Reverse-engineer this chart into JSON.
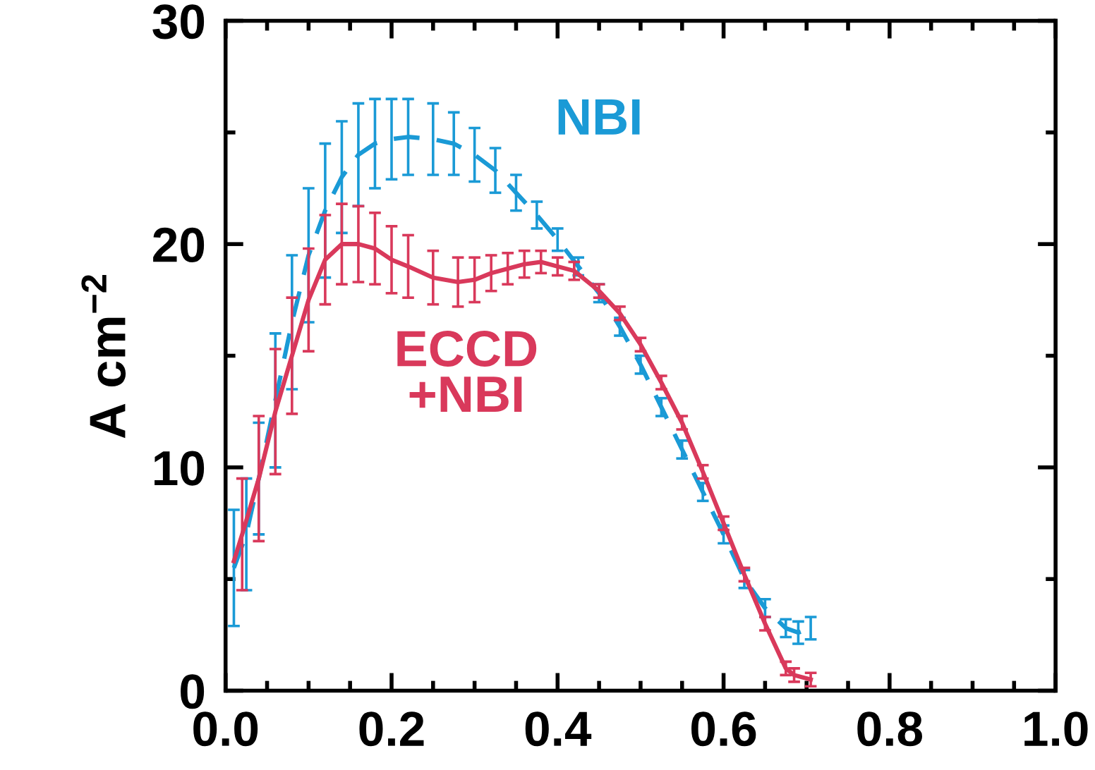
{
  "chart_data": {
    "type": "line",
    "ylabel": "A cm$^{−2}$",
    "xlim": [
      0.0,
      1.0
    ],
    "xticks": [
      {
        "value": 0.0,
        "label": "0.0"
      },
      0.2,
      0.4,
      0.6,
      0.8,
      {
        "value": 1.0,
        "label": "1.0"
      }
    ],
    "ylim": [
      0,
      30
    ],
    "yticks": [
      0,
      10,
      20,
      30
    ],
    "grid": false,
    "series": [
      {
        "name": "NBI",
        "color": "#1a9ad6",
        "line_style": "dashed",
        "x": [
          0.01,
          0.025,
          0.04,
          0.06,
          0.08,
          0.1,
          0.12,
          0.14,
          0.16,
          0.18,
          0.2,
          0.22,
          0.25,
          0.275,
          0.3,
          0.325,
          0.35,
          0.375,
          0.4,
          0.425,
          0.45,
          0.475,
          0.5,
          0.525,
          0.55,
          0.575,
          0.6,
          0.625,
          0.65,
          0.675,
          0.69,
          0.705
        ],
        "values": [
          5.5,
          7.0,
          9.5,
          13.0,
          16.5,
          19.5,
          21.5,
          23.0,
          24.0,
          24.5,
          24.7,
          24.8,
          24.7,
          24.5,
          24.0,
          23.3,
          22.3,
          21.3,
          20.2,
          19.0,
          17.8,
          16.3,
          14.6,
          12.7,
          10.8,
          8.9,
          7.0,
          5.0,
          3.7,
          2.8,
          2.6,
          2.8
        ],
        "errors": [
          2.6,
          2.5,
          2.5,
          3,
          3,
          3,
          3,
          2.5,
          2.3,
          2,
          1.8,
          1.7,
          1.6,
          1.4,
          1.2,
          1.0,
          0.8,
          0.6,
          0.5,
          0.4,
          0.4,
          0.4,
          0.4,
          0.4,
          0.4,
          0.4,
          0.4,
          0.4,
          0.4,
          0.4,
          0.5,
          0.5
        ]
      },
      {
        "name": "ECCD\n+NBI",
        "color": "#d9395b",
        "line_style": "solid",
        "x": [
          0.01,
          0.02,
          0.04,
          0.06,
          0.08,
          0.1,
          0.12,
          0.14,
          0.16,
          0.18,
          0.2,
          0.22,
          0.25,
          0.28,
          0.3,
          0.32,
          0.34,
          0.36,
          0.38,
          0.4,
          0.42,
          0.45,
          0.475,
          0.5,
          0.525,
          0.55,
          0.575,
          0.6,
          0.625,
          0.65,
          0.675,
          0.685,
          0.705
        ],
        "values": [
          5.8,
          7.0,
          9.5,
          12.5,
          15.0,
          17.5,
          19.3,
          20.0,
          20.0,
          19.8,
          19.3,
          19.0,
          18.5,
          18.3,
          18.4,
          18.7,
          18.9,
          19.1,
          19.2,
          19.0,
          18.8,
          17.9,
          16.9,
          15.5,
          13.8,
          12.0,
          9.8,
          7.5,
          5.2,
          3.0,
          1.0,
          0.7,
          0.5
        ],
        "errors": [
          null,
          2.5,
          2.8,
          2.8,
          2.6,
          2.3,
          2,
          1.8,
          1.7,
          1.6,
          1.5,
          1.4,
          1.2,
          1.1,
          1.0,
          0.8,
          0.7,
          0.6,
          0.5,
          0.4,
          0.4,
          0.3,
          0.3,
          0.3,
          0.3,
          0.3,
          0.3,
          0.3,
          0.3,
          0.3,
          0.3,
          0.3,
          0.3
        ]
      }
    ]
  }
}
